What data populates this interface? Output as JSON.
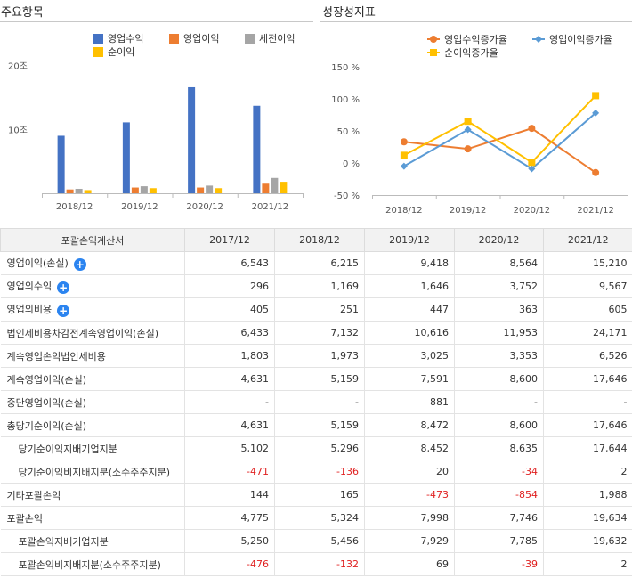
{
  "left_panel": {
    "title": "주요항목"
  },
  "right_panel": {
    "title": "성장성지표"
  },
  "chart_data": [
    {
      "type": "bar",
      "categories": [
        "2018/12",
        "2019/12",
        "2020/12",
        "2021/12"
      ],
      "series": [
        {
          "name": "영업수익",
          "color": "#4472c4",
          "values": [
            9.0,
            11.1,
            16.6,
            13.7
          ]
        },
        {
          "name": "영업이익",
          "color": "#ed7d31",
          "values": [
            0.6,
            0.9,
            0.9,
            1.5
          ]
        },
        {
          "name": "세전이익",
          "color": "#a5a5a5",
          "values": [
            0.7,
            1.1,
            1.2,
            2.4
          ]
        },
        {
          "name": "순이익",
          "color": "#ffc000",
          "values": [
            0.5,
            0.8,
            0.8,
            1.8
          ]
        }
      ],
      "y_ticks": [
        {
          "value": 10,
          "label": "10조"
        },
        {
          "value": 20,
          "label": "20조"
        }
      ],
      "ylim": [
        0,
        20.5
      ],
      "legend": "top"
    },
    {
      "type": "line",
      "categories": [
        "2018/12",
        "2019/12",
        "2020/12",
        "2021/12"
      ],
      "series": [
        {
          "name": "영업수익증가율",
          "color": "#ed7d31",
          "marker": "circle",
          "values": [
            33,
            22,
            54,
            -15
          ]
        },
        {
          "name": "영업이익증가율",
          "color": "#5b9bd5",
          "marker": "diamond",
          "values": [
            -5,
            52,
            -9,
            78
          ]
        },
        {
          "name": "순이익증가율",
          "color": "#ffc000",
          "marker": "square",
          "values": [
            12,
            65,
            1,
            105
          ]
        }
      ],
      "y_ticks": [
        {
          "value": 150,
          "label": "150 %"
        },
        {
          "value": 100,
          "label": "100 %"
        },
        {
          "value": 50,
          "label": "50 %"
        },
        {
          "value": 0,
          "label": "0 %"
        },
        {
          "value": -50,
          "label": "-50 %"
        }
      ],
      "ylim": [
        -50,
        150
      ],
      "legend": "top"
    }
  ],
  "table": {
    "header": [
      "포괄손익계산서",
      "2017/12",
      "2018/12",
      "2019/12",
      "2020/12",
      "2021/12"
    ],
    "rows": [
      {
        "label": "영업이익(손실)",
        "expand": true,
        "values": [
          "6,543",
          "6,215",
          "9,418",
          "8,564",
          "15,210"
        ]
      },
      {
        "label": "영업외수익",
        "expand": true,
        "values": [
          "296",
          "1,169",
          "1,646",
          "3,752",
          "9,567"
        ]
      },
      {
        "label": "영업외비용",
        "expand": true,
        "values": [
          "405",
          "251",
          "447",
          "363",
          "605"
        ]
      },
      {
        "label": "법인세비용차감전계속영업이익(손실)",
        "values": [
          "6,433",
          "7,132",
          "10,616",
          "11,953",
          "24,171"
        ]
      },
      {
        "label": "계속영업손익법인세비용",
        "values": [
          "1,803",
          "1,973",
          "3,025",
          "3,353",
          "6,526"
        ]
      },
      {
        "label": "계속영업이익(손실)",
        "values": [
          "4,631",
          "5,159",
          "7,591",
          "8,600",
          "17,646"
        ]
      },
      {
        "label": "중단영업이익(손실)",
        "values": [
          "-",
          "-",
          "881",
          "-",
          "-"
        ]
      },
      {
        "label": "총당기순이익(손실)",
        "values": [
          "4,631",
          "5,159",
          "8,472",
          "8,600",
          "17,646"
        ]
      },
      {
        "label": "당기순이익지배기업지분",
        "sub": true,
        "values": [
          "5,102",
          "5,296",
          "8,452",
          "8,635",
          "17,644"
        ]
      },
      {
        "label": "당기순이익비지배지분(소수주주지분)",
        "sub": true,
        "values": [
          "-471",
          "-136",
          "20",
          "-34",
          "2"
        ]
      },
      {
        "label": "기타포괄손익",
        "values": [
          "144",
          "165",
          "-473",
          "-854",
          "1,988"
        ]
      },
      {
        "label": "포괄손익",
        "values": [
          "4,775",
          "5,324",
          "7,998",
          "7,746",
          "19,634"
        ]
      },
      {
        "label": "포괄손익지배기업지분",
        "sub": true,
        "values": [
          "5,250",
          "5,456",
          "7,929",
          "7,785",
          "19,632"
        ]
      },
      {
        "label": "포괄손익비지배지분(소수주주지분)",
        "sub": true,
        "values": [
          "-476",
          "-132",
          "69",
          "-39",
          "2"
        ]
      }
    ]
  }
}
